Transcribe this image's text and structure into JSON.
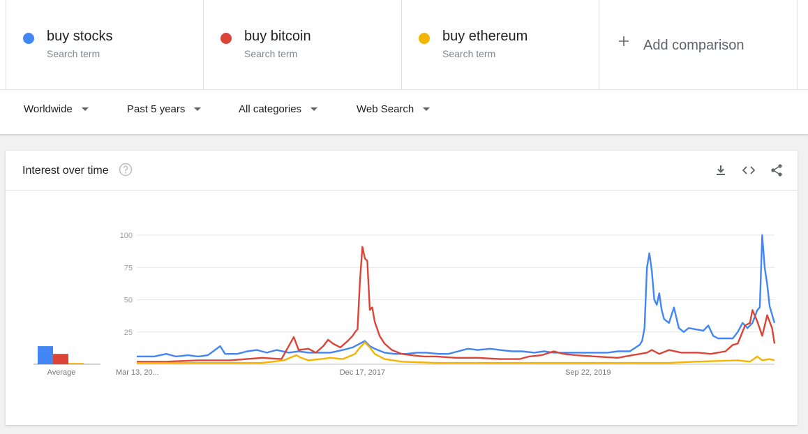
{
  "terms": [
    {
      "name": "buy stocks",
      "sub": "Search term",
      "color": "#4285f4"
    },
    {
      "name": "buy bitcoin",
      "sub": "Search term",
      "color": "#db4437"
    },
    {
      "name": "buy ethereum",
      "sub": "Search term",
      "color": "#f4b400"
    }
  ],
  "add_comparison": {
    "label": "Add comparison",
    "icon": "plus-icon"
  },
  "filters": [
    {
      "label": "Worldwide"
    },
    {
      "label": "Past 5 years"
    },
    {
      "label": "All categories"
    },
    {
      "label": "Web Search"
    }
  ],
  "card": {
    "title": "Interest over time",
    "help_icon": "help-circle-icon",
    "tools": [
      "download-icon",
      "embed-code-icon",
      "share-icon"
    ]
  },
  "chart_data": {
    "type": "line",
    "x_range": [
      "2016-03-13",
      "2021-03-07"
    ],
    "x_ticks": [
      {
        "date": "2016-03-13",
        "label": "Mar 13, 20..."
      },
      {
        "date": "2017-12-17",
        "label": "Dec 17, 2017"
      },
      {
        "date": "2019-09-22",
        "label": "Sep 22, 2019"
      }
    ],
    "ylim": [
      0,
      100
    ],
    "y_ticks": [
      25,
      50,
      75,
      100
    ],
    "grid": true,
    "average": {
      "label": "Average",
      "values": [
        14,
        8,
        1
      ]
    },
    "series": [
      {
        "name": "buy stocks",
        "color": "#4285f4",
        "points": [
          [
            "2016-03-13",
            6
          ],
          [
            "2016-05-01",
            6
          ],
          [
            "2016-06-05",
            8
          ],
          [
            "2016-07-03",
            6
          ],
          [
            "2016-08-07",
            7
          ],
          [
            "2016-09-04",
            6
          ],
          [
            "2016-10-02",
            7
          ],
          [
            "2016-11-06",
            14
          ],
          [
            "2016-11-20",
            8
          ],
          [
            "2016-12-25",
            8
          ],
          [
            "2017-01-22",
            10
          ],
          [
            "2017-02-19",
            11
          ],
          [
            "2017-03-19",
            9
          ],
          [
            "2017-04-16",
            11
          ],
          [
            "2017-05-21",
            9
          ],
          [
            "2017-06-18",
            10
          ],
          [
            "2017-07-16",
            9
          ],
          [
            "2017-08-20",
            9
          ],
          [
            "2017-09-17",
            9
          ],
          [
            "2017-10-22",
            11
          ],
          [
            "2017-11-19",
            13
          ],
          [
            "2017-12-10",
            16
          ],
          [
            "2017-12-24",
            18
          ],
          [
            "2018-01-07",
            14
          ],
          [
            "2018-01-21",
            12
          ],
          [
            "2018-02-18",
            9
          ],
          [
            "2018-03-18",
            8
          ],
          [
            "2018-04-22",
            8
          ],
          [
            "2018-05-20",
            9
          ],
          [
            "2018-06-17",
            9
          ],
          [
            "2018-07-22",
            8
          ],
          [
            "2018-08-19",
            8
          ],
          [
            "2018-09-16",
            10
          ],
          [
            "2018-10-14",
            12
          ],
          [
            "2018-11-11",
            11
          ],
          [
            "2018-12-16",
            12
          ],
          [
            "2019-01-13",
            11
          ],
          [
            "2019-02-17",
            10
          ],
          [
            "2019-03-17",
            10
          ],
          [
            "2019-04-21",
            9
          ],
          [
            "2019-05-19",
            10
          ],
          [
            "2019-06-16",
            9
          ],
          [
            "2019-07-21",
            9
          ],
          [
            "2019-08-18",
            9
          ],
          [
            "2019-09-22",
            9
          ],
          [
            "2019-10-20",
            9
          ],
          [
            "2019-11-17",
            9
          ],
          [
            "2019-12-15",
            10
          ],
          [
            "2020-01-19",
            10
          ],
          [
            "2020-02-16",
            15
          ],
          [
            "2020-02-23",
            18
          ],
          [
            "2020-03-01",
            28
          ],
          [
            "2020-03-08",
            75
          ],
          [
            "2020-03-15",
            86
          ],
          [
            "2020-03-22",
            72
          ],
          [
            "2020-03-29",
            50
          ],
          [
            "2020-04-05",
            46
          ],
          [
            "2020-04-12",
            55
          ],
          [
            "2020-04-19",
            42
          ],
          [
            "2020-04-26",
            35
          ],
          [
            "2020-05-10",
            32
          ],
          [
            "2020-05-24",
            44
          ],
          [
            "2020-06-07",
            28
          ],
          [
            "2020-06-21",
            25
          ],
          [
            "2020-07-05",
            28
          ],
          [
            "2020-07-26",
            27
          ],
          [
            "2020-08-16",
            26
          ],
          [
            "2020-08-30",
            30
          ],
          [
            "2020-09-13",
            22
          ],
          [
            "2020-09-27",
            20
          ],
          [
            "2020-10-18",
            20
          ],
          [
            "2020-11-08",
            20
          ],
          [
            "2020-11-22",
            25
          ],
          [
            "2020-12-06",
            32
          ],
          [
            "2020-12-20",
            28
          ],
          [
            "2021-01-03",
            32
          ],
          [
            "2021-01-17",
            42
          ],
          [
            "2021-01-24",
            44
          ],
          [
            "2021-01-31",
            100
          ],
          [
            "2021-02-07",
            75
          ],
          [
            "2021-02-14",
            62
          ],
          [
            "2021-02-21",
            45
          ],
          [
            "2021-03-07",
            32
          ]
        ]
      },
      {
        "name": "buy bitcoin",
        "color": "#db4437",
        "points": [
          [
            "2016-03-13",
            2
          ],
          [
            "2016-06-05",
            2
          ],
          [
            "2016-09-04",
            3
          ],
          [
            "2016-12-04",
            3
          ],
          [
            "2017-03-05",
            5
          ],
          [
            "2017-04-30",
            4
          ],
          [
            "2017-06-04",
            21
          ],
          [
            "2017-06-18",
            11
          ],
          [
            "2017-07-16",
            12
          ],
          [
            "2017-08-06",
            9
          ],
          [
            "2017-08-27",
            14
          ],
          [
            "2017-09-10",
            19
          ],
          [
            "2017-09-24",
            16
          ],
          [
            "2017-10-15",
            13
          ],
          [
            "2017-11-05",
            18
          ],
          [
            "2017-11-19",
            22
          ],
          [
            "2017-11-26",
            25
          ],
          [
            "2017-12-03",
            27
          ],
          [
            "2017-12-10",
            65
          ],
          [
            "2017-12-17",
            91
          ],
          [
            "2017-12-24",
            82
          ],
          [
            "2017-12-31",
            80
          ],
          [
            "2018-01-07",
            42
          ],
          [
            "2018-01-14",
            44
          ],
          [
            "2018-01-21",
            33
          ],
          [
            "2018-02-04",
            22
          ],
          [
            "2018-02-18",
            16
          ],
          [
            "2018-03-11",
            11
          ],
          [
            "2018-04-08",
            8
          ],
          [
            "2018-05-06",
            7
          ],
          [
            "2018-06-10",
            6
          ],
          [
            "2018-07-15",
            6
          ],
          [
            "2018-09-09",
            5
          ],
          [
            "2018-11-11",
            5
          ],
          [
            "2019-01-13",
            4
          ],
          [
            "2019-03-10",
            4
          ],
          [
            "2019-04-07",
            6
          ],
          [
            "2019-05-12",
            7
          ],
          [
            "2019-06-16",
            10
          ],
          [
            "2019-07-14",
            8
          ],
          [
            "2019-08-18",
            7
          ],
          [
            "2019-10-13",
            6
          ],
          [
            "2019-12-15",
            5
          ],
          [
            "2020-01-26",
            7
          ],
          [
            "2020-03-08",
            9
          ],
          [
            "2020-03-22",
            11
          ],
          [
            "2020-04-12",
            8
          ],
          [
            "2020-05-10",
            11
          ],
          [
            "2020-06-14",
            9
          ],
          [
            "2020-08-02",
            9
          ],
          [
            "2020-09-06",
            8
          ],
          [
            "2020-10-18",
            10
          ],
          [
            "2020-11-08",
            15
          ],
          [
            "2020-11-22",
            16
          ],
          [
            "2020-12-13",
            30
          ],
          [
            "2020-12-27",
            32
          ],
          [
            "2021-01-03",
            42
          ],
          [
            "2021-01-17",
            33
          ],
          [
            "2021-01-31",
            22
          ],
          [
            "2021-02-14",
            38
          ],
          [
            "2021-02-28",
            28
          ],
          [
            "2021-03-07",
            16
          ]
        ]
      },
      {
        "name": "buy ethereum",
        "color": "#f4b400",
        "points": [
          [
            "2016-03-13",
            1
          ],
          [
            "2016-09-04",
            1
          ],
          [
            "2017-03-05",
            1
          ],
          [
            "2017-05-07",
            3
          ],
          [
            "2017-06-11",
            7
          ],
          [
            "2017-06-25",
            5
          ],
          [
            "2017-07-16",
            3
          ],
          [
            "2017-08-20",
            4
          ],
          [
            "2017-09-17",
            5
          ],
          [
            "2017-10-22",
            4
          ],
          [
            "2017-11-26",
            8
          ],
          [
            "2017-12-10",
            13
          ],
          [
            "2017-12-24",
            17
          ],
          [
            "2018-01-07",
            13
          ],
          [
            "2018-01-21",
            8
          ],
          [
            "2018-02-18",
            4
          ],
          [
            "2018-04-08",
            2
          ],
          [
            "2018-07-15",
            1
          ],
          [
            "2019-01-13",
            1
          ],
          [
            "2019-06-16",
            1
          ],
          [
            "2019-11-17",
            1
          ],
          [
            "2020-05-10",
            1
          ],
          [
            "2020-07-26",
            2
          ],
          [
            "2020-11-22",
            3
          ],
          [
            "2020-12-27",
            2
          ],
          [
            "2021-01-17",
            6
          ],
          [
            "2021-01-31",
            3
          ],
          [
            "2021-02-21",
            4
          ],
          [
            "2021-03-07",
            3
          ]
        ]
      }
    ]
  }
}
